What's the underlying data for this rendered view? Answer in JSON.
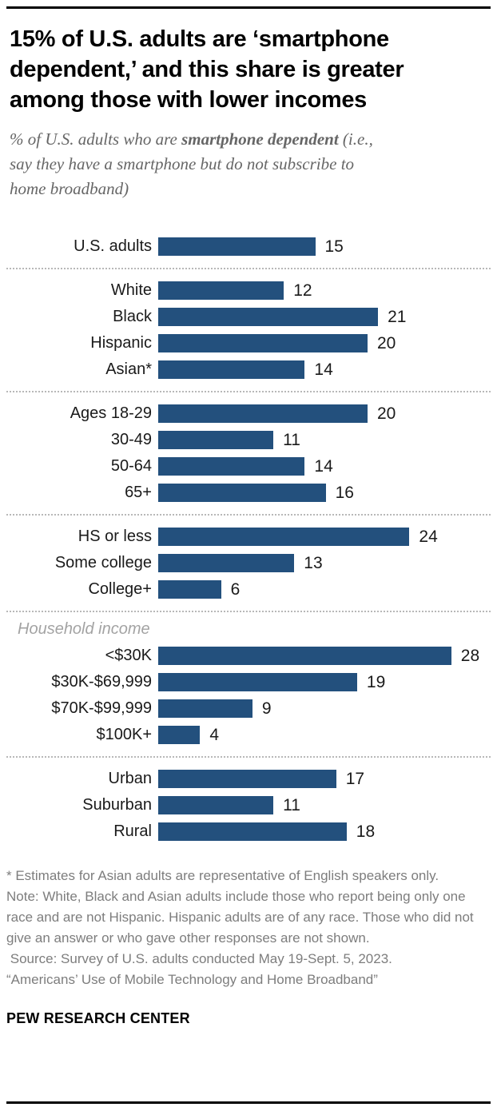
{
  "header": {
    "title": "15% of U.S. adults are ‘smartphone\ndependent,’ and this share is greater\namong those with lower incomes"
  },
  "subtitle": {
    "prefix": "% of U.S. adults who are ",
    "bold": "smartphone dependent",
    "suffix": " (i.e.,\nsay they have a smartphone but do not subscribe to\nhome broadband)"
  },
  "chart_data": {
    "type": "bar",
    "orientation": "horizontal",
    "title": "% of U.S. adults who are smartphone dependent",
    "xlabel": "",
    "ylabel": "",
    "value_unit": "percent",
    "xlim": [
      0,
      28
    ],
    "bar_color": "#23507d",
    "grid": false,
    "legend": false,
    "groups": [
      {
        "rows": [
          {
            "label": "U.S. adults",
            "value": 15
          }
        ]
      },
      {
        "rows": [
          {
            "label": "White",
            "value": 12
          },
          {
            "label": "Black",
            "value": 21
          },
          {
            "label": "Hispanic",
            "value": 20
          },
          {
            "label": "Asian*",
            "value": 14
          }
        ]
      },
      {
        "rows": [
          {
            "label": "Ages 18-29",
            "value": 20
          },
          {
            "label": "30-49",
            "value": 11
          },
          {
            "label": "50-64",
            "value": 14
          },
          {
            "label": "65+",
            "value": 16
          }
        ]
      },
      {
        "rows": [
          {
            "label": "HS or less",
            "value": 24
          },
          {
            "label": "Some college",
            "value": 13
          },
          {
            "label": "College+",
            "value": 6
          }
        ]
      },
      {
        "header": "Household income",
        "rows": [
          {
            "label": "<$30K",
            "value": 28
          },
          {
            "label": "$30K-$69,999",
            "value": 19
          },
          {
            "label": "$70K-$99,999",
            "value": 9
          },
          {
            "label": "$100K+",
            "value": 4
          }
        ]
      },
      {
        "rows": [
          {
            "label": "Urban",
            "value": 17
          },
          {
            "label": "Suburban",
            "value": 11
          },
          {
            "label": "Rural",
            "value": 18
          }
        ]
      }
    ]
  },
  "footer": {
    "asterisk_note": "* Estimates for Asian adults are representative of English speakers only.",
    "note": "Note: White, Black and Asian adults include those who report being only one race and are not Hispanic. Hispanic adults are of any race. Those who did not give an answer or who gave other responses are not shown.",
    "source": " Source: Survey of U.S. adults conducted May 19-Sept. 5, 2023.",
    "report": "“Americans’ Use of Mobile Technology and Home Broadband”",
    "brand": "PEW RESEARCH CENTER"
  }
}
